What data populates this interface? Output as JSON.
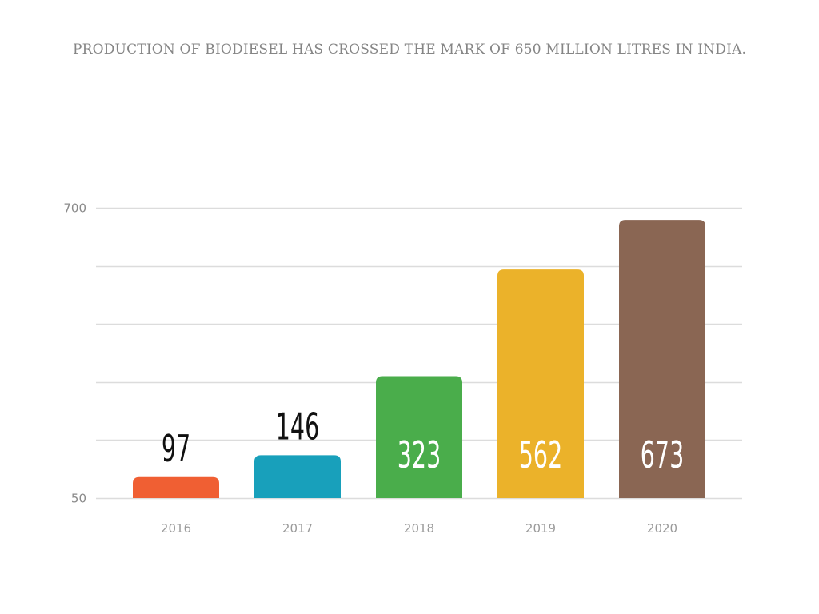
{
  "chart_data": {
    "type": "bar",
    "title": "PRODUCTION OF BIODIESEL HAS CROSSED THE MARK OF 650 MILLION LITRES IN INDIA.",
    "categories": [
      "2016",
      "2017",
      "2018",
      "2019",
      "2020"
    ],
    "values": [
      97,
      146,
      323,
      562,
      673
    ],
    "colors": [
      "#f05f33",
      "#18a0bb",
      "#4aad4b",
      "#ebb22a",
      "#8a6653"
    ],
    "label_inside": [
      false,
      false,
      true,
      true,
      true
    ],
    "xlabel": "",
    "ylabel": "",
    "ylim": [
      50,
      700
    ],
    "yticks": [
      50,
      180,
      310,
      440,
      570,
      700
    ],
    "ytick_labels": [
      "50",
      "",
      "",
      "",
      "",
      "700"
    ],
    "grid": true,
    "legend": "none"
  }
}
